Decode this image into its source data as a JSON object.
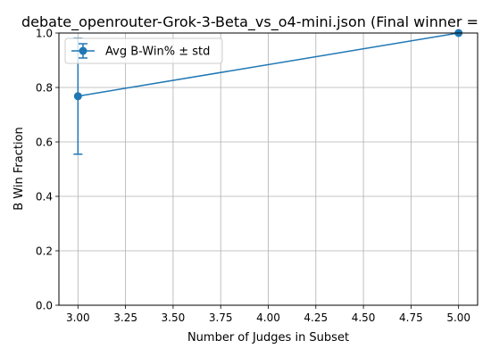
{
  "chart_data": {
    "type": "line",
    "title": "debate_openrouter-Grok-3-Beta_vs_o4-mini.json (Final winner =",
    "xlabel": "Number of Judges in Subset",
    "ylabel": "B Win Fraction",
    "xlim": [
      2.9,
      5.1
    ],
    "ylim": [
      0.0,
      1.0
    ],
    "x_ticks": [
      "3.00",
      "3.25",
      "3.50",
      "3.75",
      "4.00",
      "4.25",
      "4.50",
      "4.75",
      "5.00"
    ],
    "x_tick_values": [
      3.0,
      3.25,
      3.5,
      3.75,
      4.0,
      4.25,
      4.5,
      4.75,
      5.0
    ],
    "y_ticks": [
      "0.0",
      "0.2",
      "0.4",
      "0.6",
      "0.8",
      "1.0"
    ],
    "y_tick_values": [
      0.0,
      0.2,
      0.4,
      0.6,
      0.8,
      1.0
    ],
    "grid": true,
    "legend_position": "top-left",
    "series": [
      {
        "name": "Avg B-Win% ± std",
        "color": "#1f77b4",
        "marker": "circle",
        "x": [
          3.0,
          5.0
        ],
        "y": [
          0.768,
          1.0
        ],
        "std": [
          0.213,
          0.0
        ]
      }
    ]
  }
}
